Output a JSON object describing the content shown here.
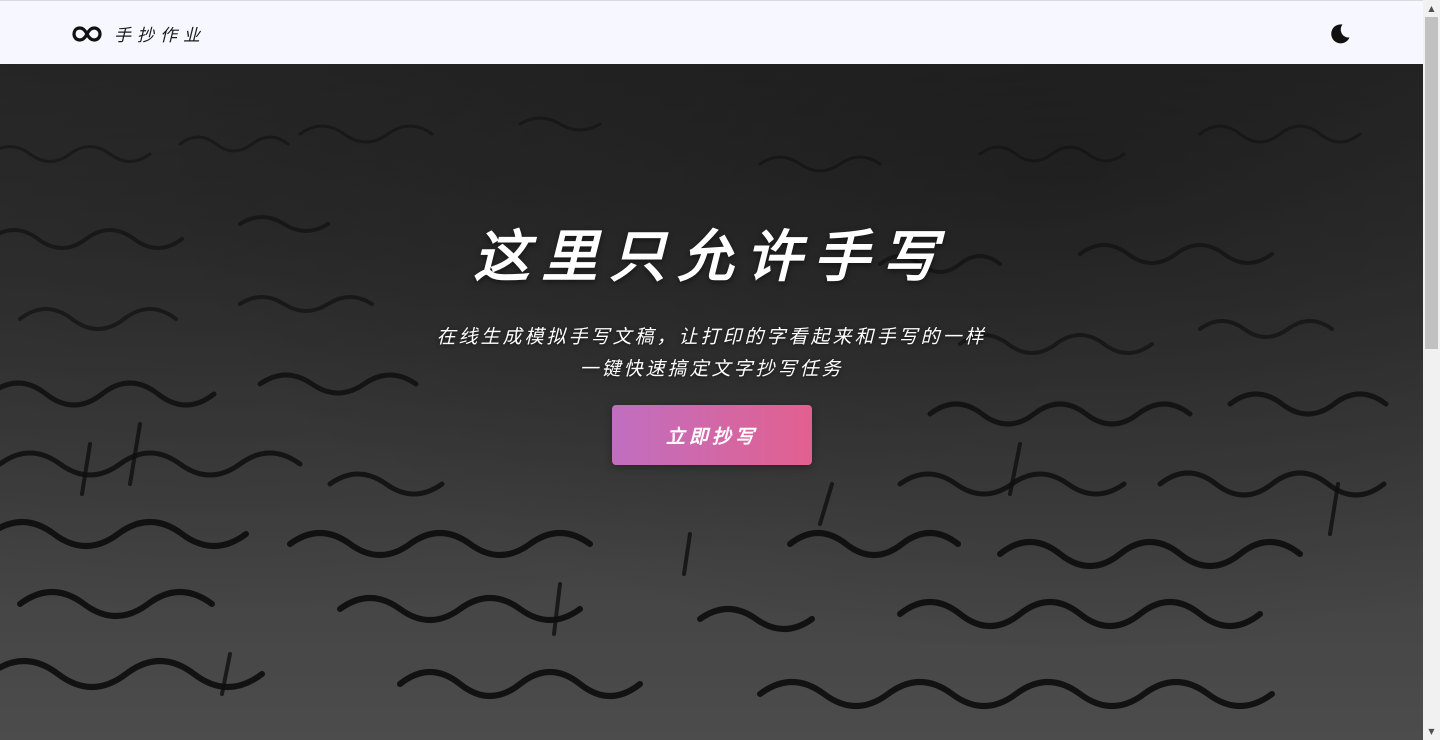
{
  "header": {
    "brand_name": "手抄作业",
    "logo_icon": "infinity-icon",
    "theme_toggle_icon": "moon-icon"
  },
  "hero": {
    "title": "这里只允许手写",
    "subtitle_line1": "在线生成模拟手写文稿，让打印的字看起来和手写的一样",
    "subtitle_line2": "一键快速搞定文字抄写任务",
    "cta_label": "立即抄写",
    "cta_gradient": [
      "#c06fc0",
      "#e2608f"
    ]
  },
  "scrollbar": {
    "up_icon": "scroll-up-arrow-icon",
    "down_icon": "scroll-down-arrow-icon"
  }
}
